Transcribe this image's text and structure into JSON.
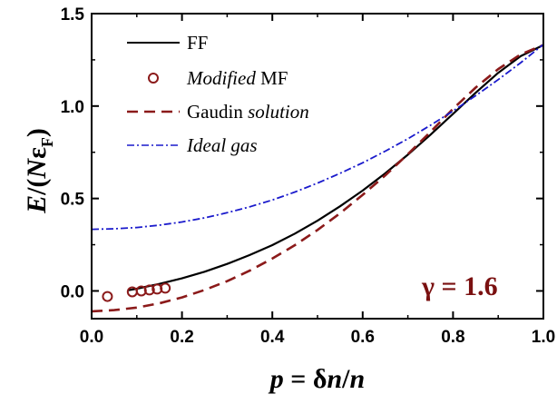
{
  "chart_data": {
    "type": "line",
    "x_axis": {
      "range": [
        0.0,
        1.0
      ],
      "ticks": [
        0.0,
        0.2,
        0.4,
        0.6,
        0.8,
        1.0
      ],
      "tick_labels": [
        "0.0",
        "0.2",
        "0.4",
        "0.6",
        "0.8",
        "1.0"
      ],
      "label_italic": "p",
      "label_eq": "=",
      "label_delta": "δ",
      "label_n1": "n",
      "label_slash": "/",
      "label_n2": "n"
    },
    "y_axis": {
      "range": [
        -0.15,
        1.5
      ],
      "ticks": [
        0.0,
        0.5,
        1.0,
        1.5
      ],
      "tick_labels": [
        "0.0",
        "0.5",
        "1.0",
        "1.5"
      ],
      "label_E": "E",
      "label_slash": "/",
      "label_open": "(",
      "label_N": "N",
      "label_eps": "ε",
      "label_sub": "F",
      "label_close": ")"
    },
    "annotation": "γ = 1.6",
    "annotation_color": "#7a1010",
    "legend_position": "top-left",
    "grid": false,
    "series": [
      {
        "name": "FF",
        "kind": "solid-line",
        "color": "#000000",
        "x": [
          0.08,
          0.1,
          0.15,
          0.2,
          0.25,
          0.3,
          0.35,
          0.4,
          0.45,
          0.5,
          0.55,
          0.6,
          0.65,
          0.7,
          0.75,
          0.8,
          0.85,
          0.9,
          0.95,
          1.0
        ],
        "y": [
          0.003,
          0.012,
          0.038,
          0.068,
          0.104,
          0.146,
          0.194,
          0.248,
          0.31,
          0.38,
          0.458,
          0.543,
          0.636,
          0.737,
          0.845,
          0.958,
          1.072,
          1.18,
          1.27,
          1.33
        ]
      },
      {
        "name_italic": "Modified",
        "name": "MF",
        "kind": "open-circles",
        "color": "#8b1a1a",
        "x": [
          0.035,
          0.09,
          0.11,
          0.128,
          0.145,
          0.163
        ],
        "y": [
          -0.03,
          -0.005,
          0.0,
          0.005,
          0.01,
          0.015
        ]
      },
      {
        "name": "Gaudin",
        "name_italic": "solution",
        "kind": "dashed-line",
        "color": "#8b1a1a",
        "x": [
          0.0,
          0.05,
          0.1,
          0.15,
          0.2,
          0.25,
          0.3,
          0.35,
          0.4,
          0.45,
          0.5,
          0.55,
          0.6,
          0.65,
          0.7,
          0.75,
          0.8,
          0.85,
          0.9,
          0.95,
          1.0
        ],
        "y": [
          -0.11,
          -0.104,
          -0.09,
          -0.067,
          -0.035,
          0.005,
          0.053,
          0.11,
          0.175,
          0.248,
          0.33,
          0.42,
          0.52,
          0.625,
          0.74,
          0.86,
          0.985,
          1.1,
          1.2,
          1.28,
          1.33
        ]
      },
      {
        "name_italic": "Ideal gas",
        "kind": "dashdot-line",
        "color": "#1a1acc",
        "x": [
          0.0,
          0.05,
          0.1,
          0.15,
          0.2,
          0.25,
          0.3,
          0.35,
          0.4,
          0.45,
          0.5,
          0.55,
          0.6,
          0.65,
          0.7,
          0.75,
          0.8,
          0.85,
          0.9,
          0.95,
          1.0
        ],
        "y": [
          0.333,
          0.336,
          0.343,
          0.356,
          0.373,
          0.395,
          0.423,
          0.455,
          0.492,
          0.535,
          0.583,
          0.636,
          0.693,
          0.756,
          0.823,
          0.896,
          0.973,
          1.056,
          1.143,
          1.235,
          1.333
        ]
      }
    ]
  }
}
